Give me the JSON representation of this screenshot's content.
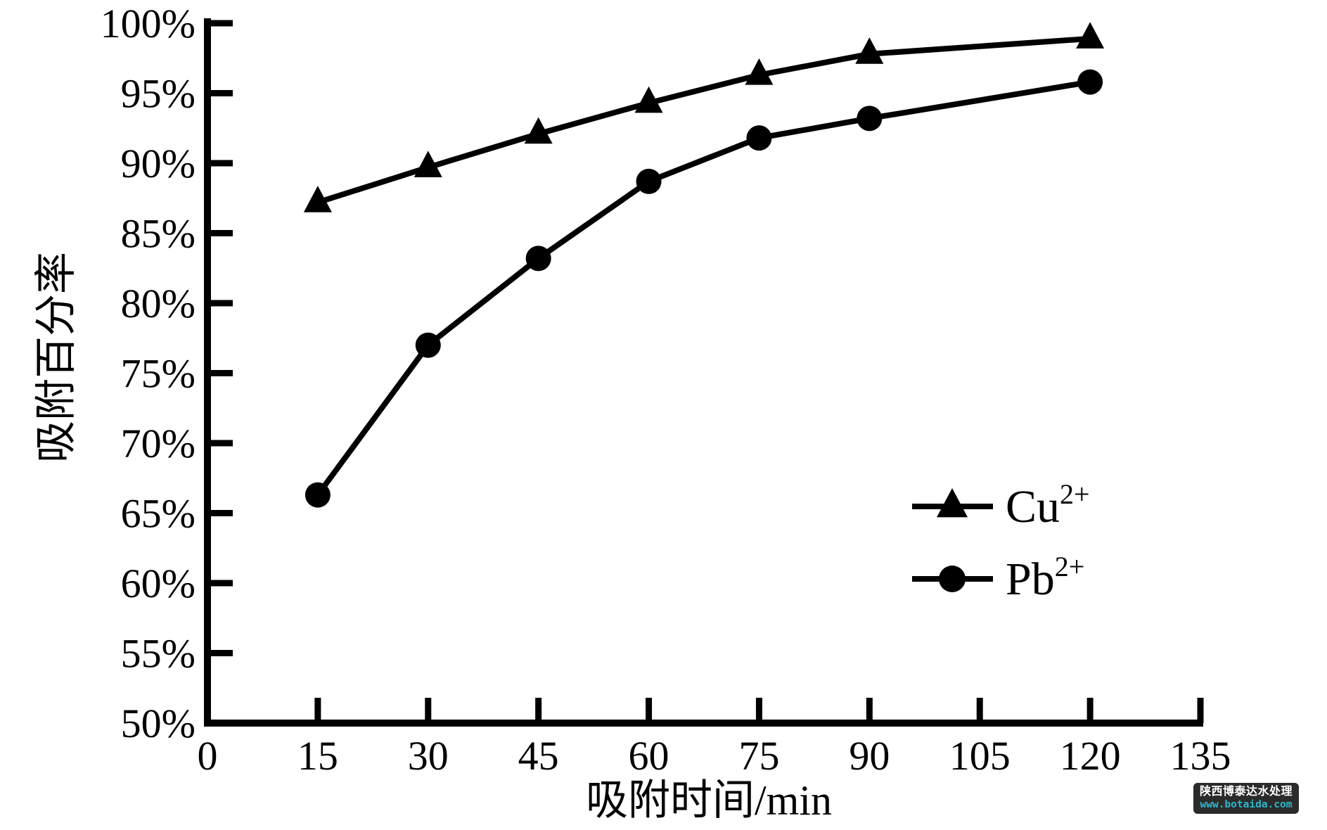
{
  "chart_data": {
    "type": "line",
    "title": "",
    "xlabel": "吸附时间/min",
    "ylabel": "吸附百分率",
    "xlim": [
      0,
      135
    ],
    "ylim": [
      50,
      100
    ],
    "grid": false,
    "background_color": "#ffffff",
    "line_color": "#000000",
    "x_ticks": [
      {
        "v": 0,
        "label": "0",
        "mark": false
      },
      {
        "v": 15,
        "label": "15",
        "mark": true
      },
      {
        "v": 30,
        "label": "30",
        "mark": true
      },
      {
        "v": 45,
        "label": "45",
        "mark": true
      },
      {
        "v": 60,
        "label": "60",
        "mark": true
      },
      {
        "v": 75,
        "label": "75",
        "mark": true
      },
      {
        "v": 90,
        "label": "90",
        "mark": true
      },
      {
        "v": 105,
        "label": "105",
        "mark": true
      },
      {
        "v": 120,
        "label": "120",
        "mark": true
      },
      {
        "v": 135,
        "label": "135",
        "mark": true
      }
    ],
    "y_ticks": [
      {
        "v": 50,
        "label": "50%"
      },
      {
        "v": 55,
        "label": "55%"
      },
      {
        "v": 60,
        "label": "60%"
      },
      {
        "v": 65,
        "label": "65%"
      },
      {
        "v": 70,
        "label": "70%"
      },
      {
        "v": 75,
        "label": "75%"
      },
      {
        "v": 80,
        "label": "80%"
      },
      {
        "v": 85,
        "label": "85%"
      },
      {
        "v": 90,
        "label": "90%"
      },
      {
        "v": 95,
        "label": "95%"
      },
      {
        "v": 100,
        "label": "100%"
      }
    ],
    "series": [
      {
        "name": "Cu2+",
        "label_base": "Cu",
        "label_sup": "2+",
        "marker": "triangle",
        "x": [
          15,
          30,
          45,
          60,
          75,
          90,
          120
        ],
        "y": [
          87.2,
          89.7,
          92.1,
          94.3,
          96.3,
          97.8,
          98.9
        ]
      },
      {
        "name": "Pb2+",
        "label_base": "Pb",
        "label_sup": "2+",
        "marker": "circle",
        "x": [
          15,
          30,
          45,
          60,
          75,
          90,
          120
        ],
        "y": [
          66.3,
          77.0,
          83.2,
          88.7,
          91.8,
          93.2,
          95.8
        ]
      }
    ],
    "legend_position": "center-right"
  },
  "watermark": {
    "line1": "陕西博泰达水处理",
    "line2": "www.botaida.com",
    "bg_color": "#2b2b2b",
    "line1_color": "#ffffff",
    "line2_color": "#2bb7ce"
  }
}
